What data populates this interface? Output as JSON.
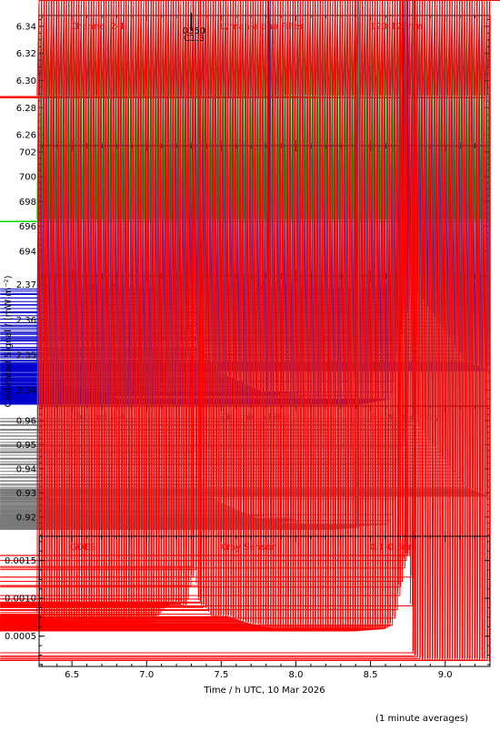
{
  "chart_data": {
    "type": "scatter",
    "xlabel": "Time / h UTC, 10 Mar 2026",
    "ylabel": "Calibrated Signal / (mW m⁻²)",
    "xlim": [
      6.28,
      9.3
    ],
    "xticks": [
      "6.5",
      "7.0",
      "7.5",
      "8.0",
      "8.5",
      "9.0"
    ],
    "xtick_values": [
      6.5,
      7.0,
      7.5,
      8.0,
      8.5,
      9.0
    ],
    "footnote": "(1 minute averages)",
    "marker_annotation": {
      "x": 7.3,
      "lines": [
        "0350",
        "C1.3"
      ]
    },
    "panels": [
      {
        "channel": "Channel 2-1",
        "filter": "Lyman-alpha Filter",
        "band": "120-123nm",
        "color": "#ff0000",
        "ylim": [
          6.252,
          6.348
        ],
        "yticks": [
          "6.26",
          "6.28",
          "6.30",
          "6.32",
          "6.34"
        ],
        "ytick_values": [
          6.26,
          6.28,
          6.3,
          6.32,
          6.34
        ],
        "knots": [
          [
            6.28,
            6.2875
          ],
          [
            7.9,
            6.2875
          ],
          [
            8.0,
            6.2882
          ],
          [
            8.2,
            6.2875
          ],
          [
            9.3,
            6.2875
          ]
        ],
        "events": []
      },
      {
        "channel": "Channel 2-2",
        "filter": "Herzberg Filter",
        "band": "190-222nm",
        "color": "#00dd00",
        "ylim": [
          692.0,
          702.5
        ],
        "yticks": [
          "694",
          "696",
          "698",
          "700",
          "702"
        ],
        "ytick_values": [
          694,
          696,
          698,
          700,
          702
        ],
        "knots": [
          [
            6.28,
            696.4
          ],
          [
            9.3,
            696.4
          ]
        ],
        "events": []
      },
      {
        "channel": "Channel 2-3",
        "filter": "Aluminium Filter",
        "band": "17-80nm + Xray",
        "color": "#0000cc",
        "ylim": [
          2.3355,
          2.3725
        ],
        "yticks": [
          "2.34",
          "2.35",
          "2.36",
          "2.37"
        ],
        "ytick_values": [
          2.34,
          2.35,
          2.36,
          2.37
        ],
        "knots": [
          [
            6.28,
            2.347
          ],
          [
            6.35,
            2.345
          ],
          [
            6.5,
            2.341
          ],
          [
            6.7,
            2.3385
          ],
          [
            6.85,
            2.3372
          ],
          [
            7.0,
            2.337
          ],
          [
            7.05,
            2.3375
          ],
          [
            7.1,
            2.342
          ],
          [
            7.15,
            2.346
          ],
          [
            7.2,
            2.3475
          ],
          [
            7.27,
            2.347
          ],
          [
            7.3,
            2.357
          ],
          [
            7.33,
            2.3585
          ],
          [
            7.36,
            2.352
          ],
          [
            7.45,
            2.346
          ],
          [
            7.55,
            2.344
          ],
          [
            7.7,
            2.341
          ],
          [
            7.78,
            2.3395
          ],
          [
            7.85,
            2.3385
          ],
          [
            7.95,
            2.3395
          ],
          [
            8.0,
            2.3395
          ],
          [
            8.1,
            2.3365
          ],
          [
            8.3,
            2.336
          ],
          [
            8.45,
            2.3362
          ],
          [
            8.63,
            2.3375
          ],
          [
            8.66,
            2.341
          ],
          [
            8.68,
            2.35
          ],
          [
            8.72,
            2.361
          ],
          [
            8.76,
            2.366
          ],
          [
            8.8,
            2.369
          ],
          [
            8.85,
            2.366
          ],
          [
            8.95,
            2.36
          ],
          [
            9.05,
            2.354
          ],
          [
            9.15,
            2.348
          ],
          [
            9.3,
            2.3455
          ]
        ],
        "events": [
          [
            7.36,
            2.3515
          ],
          [
            7.38,
            2.3485
          ],
          [
            7.82,
            2.3395
          ],
          [
            8.4,
            2.3385
          ],
          [
            8.7,
            2.354
          ],
          [
            8.72,
            2.3565
          ],
          [
            8.75,
            2.362
          ]
        ]
      },
      {
        "channel": "Channel 2-4",
        "filter": "Zirconium Filter",
        "band": "6-20nm + Xray",
        "color": "#7a7a7a",
        "ylim": [
          0.912,
          0.966
        ],
        "yticks": [
          "0.92",
          "0.93",
          "0.94",
          "0.95",
          "0.96"
        ],
        "ytick_values": [
          0.92,
          0.93,
          0.94,
          0.95,
          0.96
        ],
        "knots": [
          [
            6.28,
            0.931
          ],
          [
            6.35,
            0.928
          ],
          [
            6.5,
            0.9235
          ],
          [
            6.7,
            0.9185
          ],
          [
            6.85,
            0.9165
          ],
          [
            7.0,
            0.9155
          ],
          [
            7.05,
            0.9165
          ],
          [
            7.1,
            0.9225
          ],
          [
            7.15,
            0.929
          ],
          [
            7.2,
            0.9315
          ],
          [
            7.27,
            0.9315
          ],
          [
            7.3,
            0.946
          ],
          [
            7.33,
            0.9475
          ],
          [
            7.36,
            0.937
          ],
          [
            7.45,
            0.9275
          ],
          [
            7.55,
            0.9245
          ],
          [
            7.7,
            0.9205
          ],
          [
            7.8,
            0.918
          ],
          [
            7.9,
            0.9175
          ],
          [
            7.98,
            0.9195
          ],
          [
            8.05,
            0.917
          ],
          [
            8.15,
            0.915
          ],
          [
            8.3,
            0.915
          ],
          [
            8.45,
            0.9165
          ],
          [
            8.62,
            0.917
          ],
          [
            8.65,
            0.9215
          ],
          [
            8.68,
            0.935
          ],
          [
            8.72,
            0.952
          ],
          [
            8.76,
            0.958
          ],
          [
            8.8,
            0.961
          ],
          [
            8.85,
            0.956
          ],
          [
            8.95,
            0.948
          ],
          [
            9.05,
            0.94
          ],
          [
            9.15,
            0.932
          ],
          [
            9.3,
            0.9285
          ]
        ],
        "events": [
          [
            7.36,
            0.935
          ],
          [
            7.38,
            0.931
          ],
          [
            7.78,
            0.9205
          ],
          [
            8.38,
            0.9155
          ],
          [
            8.42,
            0.9155
          ],
          [
            8.7,
            0.944
          ],
          [
            8.74,
            0.95
          ]
        ]
      },
      {
        "channel": "GOES",
        "filter": "Xray Sensor",
        "band": "0.1-0.8nm",
        "color": "#ff0000",
        "ylim": [
          0.0001,
          0.00182
        ],
        "yticks": [
          "0.0005",
          "0.0010",
          "0.0015"
        ],
        "ytick_values": [
          0.0005,
          0.001,
          0.0015
        ],
        "knots": [
          [
            6.28,
            0.00078
          ],
          [
            6.4,
            0.00072
          ],
          [
            6.6,
            0.00066
          ],
          [
            6.8,
            0.00061
          ],
          [
            6.95,
            0.00058
          ],
          [
            7.02,
            0.0006
          ],
          [
            7.08,
            0.00078
          ],
          [
            7.15,
            0.00092
          ],
          [
            7.2,
            0.00095
          ],
          [
            7.27,
            0.00089
          ],
          [
            7.3,
            0.0012
          ],
          [
            7.33,
            0.00138
          ],
          [
            7.36,
            0.001
          ],
          [
            7.45,
            0.00073
          ],
          [
            7.55,
            0.00076
          ],
          [
            7.7,
            0.00066
          ],
          [
            7.85,
            0.0006
          ],
          [
            8.0,
            0.00058
          ],
          [
            8.2,
            0.00058
          ],
          [
            8.4,
            0.00057
          ],
          [
            8.6,
            0.0006
          ],
          [
            8.65,
            0.00065
          ],
          [
            8.68,
            0.00085
          ],
          [
            8.72,
            0.0013
          ],
          [
            8.75,
            0.0016
          ],
          [
            8.77,
            0.00155
          ],
          [
            8.79,
            0.00025
          ],
          [
            8.85,
            0.00018
          ],
          [
            9.3,
            0.00018
          ]
        ],
        "events": [
          [
            7.31,
            0.00142
          ],
          [
            7.36,
            0.00095
          ],
          [
            7.38,
            0.00088
          ],
          [
            8.7,
            0.00115
          ],
          [
            8.74,
            0.0015
          ],
          [
            8.79,
            0.00128
          ],
          [
            8.8,
            0.00028
          ]
        ]
      }
    ]
  }
}
